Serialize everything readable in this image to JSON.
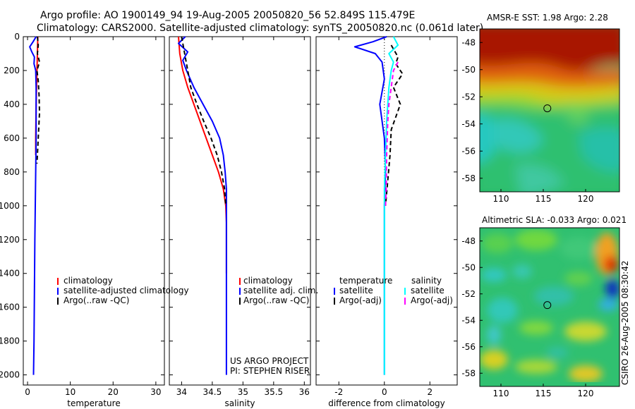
{
  "title": {
    "line1": "Argo profile: AO 1900149_94 19-Aug-2005 20050820_56 52.849S 115.479E",
    "line2": "Climatology: CARS2000. Satellite-adjusted climatology: synTS_20050820.nc (0.061d later)"
  },
  "credits": {
    "project": "US ARGO PROJECT",
    "pi": "PI: STEPHEN RISER",
    "stamp": "CSIRO 26-Aug-2005 08:30:42"
  },
  "colors": {
    "climatology": "#ff0000",
    "satellite": "#0000ff",
    "argo": "#000000",
    "sal_satellite": "#00ffff",
    "sal_argo": "#ff00ff"
  },
  "chart_data": [
    {
      "type": "line",
      "xlabel": "temperature",
      "ylabel": "",
      "xlim": [
        -1,
        32
      ],
      "ylim": [
        2060,
        0
      ],
      "xticks": [
        0,
        10,
        20,
        30
      ],
      "yticks": [
        0,
        200,
        400,
        600,
        800,
        1000,
        1200,
        1400,
        1600,
        1800,
        2000
      ],
      "legend": [
        "climatology",
        "satellite-adjusted climatology",
        "Argo(..raw -QC)"
      ],
      "series": [
        {
          "name": "climatology",
          "color": "#ff0000",
          "style": "solid",
          "x": [
            2.4,
            2.3,
            2.2,
            2.1,
            2.0,
            1.95,
            1.9,
            1.9
          ],
          "y": [
            0,
            100,
            200,
            300,
            400,
            500,
            600,
            700
          ]
        },
        {
          "name": "satellite-adjusted climatology",
          "color": "#0000ff",
          "style": "solid",
          "x": [
            2.0,
            1.3,
            0.5,
            1.0,
            1.6,
            1.5,
            1.9,
            2.0,
            2.0,
            2.0,
            1.9,
            1.8,
            1.7,
            1.6,
            1.5,
            1.4
          ],
          "y": [
            0,
            30,
            60,
            90,
            120,
            160,
            200,
            300,
            400,
            600,
            800,
            1000,
            1200,
            1500,
            1800,
            2000
          ]
        },
        {
          "name": "Argo(..raw -QC)",
          "color": "#000000",
          "style": "dashed",
          "x": [
            2.3,
            2.5,
            2.3,
            2.8,
            2.2,
            2.5,
            2.7,
            2.8,
            2.6,
            2.4,
            2.2
          ],
          "y": [
            0,
            50,
            100,
            150,
            200,
            260,
            350,
            450,
            550,
            650,
            750
          ]
        }
      ]
    },
    {
      "type": "line",
      "xlabel": "salinity",
      "ylabel": "",
      "xlim": [
        33.8,
        36.1
      ],
      "ylim": [
        2060,
        0
      ],
      "xticks": [
        34,
        34.5,
        35,
        35.5,
        36
      ],
      "yticks": [
        0,
        200,
        400,
        600,
        800,
        1000,
        1200,
        1400,
        1600,
        1800,
        2000
      ],
      "legend": [
        "climatology",
        "satellite adj. clim.",
        "Argo(..raw -QC)"
      ],
      "series": [
        {
          "name": "climatology",
          "color": "#ff0000",
          "style": "solid",
          "x": [
            33.95,
            33.97,
            34.02,
            34.1,
            34.2,
            34.3,
            34.4,
            34.5,
            34.6,
            34.68,
            34.72,
            34.73,
            34.73
          ],
          "y": [
            0,
            100,
            200,
            300,
            400,
            500,
            600,
            700,
            800,
            900,
            1000,
            1100,
            1400
          ]
        },
        {
          "name": "satellite adj. clim.",
          "color": "#0000ff",
          "style": "solid",
          "x": [
            34.06,
            33.95,
            34.1,
            34.02,
            34.08,
            34.2,
            34.35,
            34.5,
            34.62,
            34.68,
            34.71,
            34.73,
            34.73,
            34.73,
            34.73
          ],
          "y": [
            0,
            40,
            90,
            140,
            200,
            300,
            400,
            500,
            600,
            700,
            800,
            900,
            1000,
            1300,
            2000
          ]
        },
        {
          "name": "Argo(..raw -QC)",
          "color": "#000000",
          "style": "dashed",
          "x": [
            34.0,
            34.05,
            34.1,
            34.15,
            34.25,
            34.36,
            34.48,
            34.58,
            34.65,
            34.7,
            34.72
          ],
          "y": [
            0,
            100,
            200,
            300,
            400,
            500,
            600,
            700,
            800,
            900,
            1000
          ]
        }
      ]
    },
    {
      "type": "line",
      "xlabel": "difference from climatology",
      "ylabel": "",
      "xlim": [
        -3,
        3.2
      ],
      "ylim": [
        2060,
        0
      ],
      "xticks": [
        -2,
        0,
        2
      ],
      "yticks": [
        0,
        200,
        400,
        600,
        800,
        1000,
        1200,
        1400,
        1600,
        1800,
        2000
      ],
      "legend": [
        "temperature",
        "satellite",
        "Argo(-adj)",
        "salinity",
        "satellite",
        "Argo(-adj)"
      ],
      "series": [
        {
          "name": "temperature satellite",
          "color": "#0000ff",
          "style": "solid",
          "x": [
            0.1,
            -0.5,
            -1.3,
            -0.4,
            -0.1,
            0.0,
            -0.2,
            0.0,
            0.05,
            0.0,
            0.0,
            0.0,
            0.0,
            0.0
          ],
          "y": [
            0,
            30,
            60,
            100,
            150,
            250,
            400,
            600,
            800,
            1000,
            1100,
            1400,
            1700,
            2000
          ]
        },
        {
          "name": "temperature Argo(-adj)",
          "color": "#000000",
          "style": "dashed",
          "x": [
            0.3,
            0.6,
            0.5,
            0.8,
            0.4,
            0.7,
            0.3,
            0.25,
            0.15,
            0.05
          ],
          "y": [
            50,
            120,
            160,
            220,
            300,
            400,
            550,
            700,
            850,
            1000
          ]
        },
        {
          "name": "salinity satellite",
          "color": "#00ffff",
          "style": "solid",
          "x": [
            0.4,
            0.6,
            0.2,
            0.4,
            0.3,
            0.2,
            0.1,
            0.0,
            0.0,
            0.0
          ],
          "y": [
            0,
            50,
            100,
            150,
            200,
            300,
            500,
            900,
            1100,
            2000
          ]
        },
        {
          "name": "salinity Argo(-adj)",
          "color": "#ff00ff",
          "style": "dashed",
          "x": [
            0.6,
            0.4,
            0.3,
            0.2,
            0.15,
            0.1,
            0.08,
            0.05
          ],
          "y": [
            150,
            200,
            300,
            400,
            500,
            700,
            900,
            1000
          ]
        }
      ]
    },
    {
      "type": "heatmap",
      "title": "AMSR-E SST: 1.98 Argo: 2.28",
      "xlim": [
        107.5,
        124
      ],
      "ylim": [
        -59,
        -47
      ],
      "xticks": [
        110,
        115,
        120
      ],
      "yticks": [
        -48,
        -50,
        -52,
        -54,
        -56,
        -58
      ],
      "marker": {
        "lon": 115.479,
        "lat": -52.849
      }
    },
    {
      "type": "heatmap",
      "title": "Altimetric SLA: -0.033 Argo: 0.021",
      "xlim": [
        107.5,
        124
      ],
      "ylim": [
        -59,
        -47
      ],
      "xticks": [
        110,
        115,
        120
      ],
      "yticks": [
        -48,
        -50,
        -52,
        -54,
        -56,
        -58
      ],
      "marker": {
        "lon": 115.479,
        "lat": -52.849
      }
    }
  ]
}
